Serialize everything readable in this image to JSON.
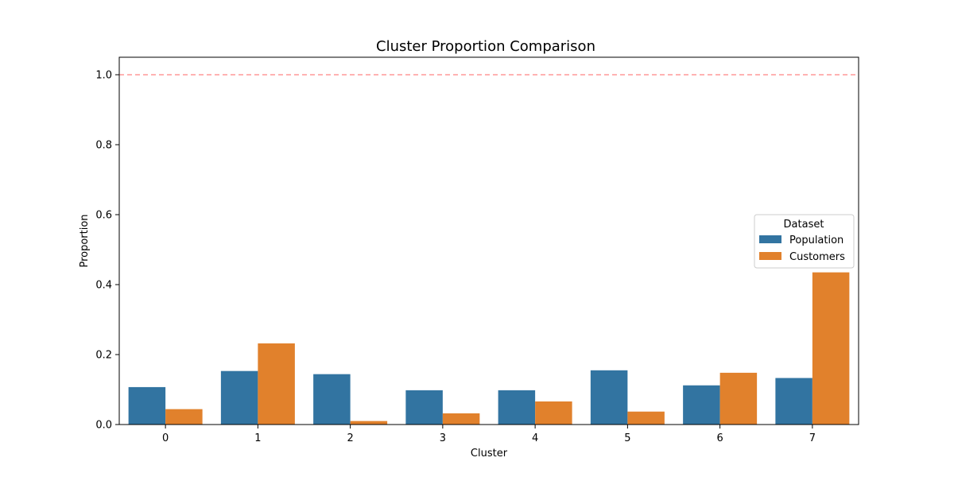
{
  "chart_data": {
    "type": "bar",
    "title": "Cluster Proportion Comparison",
    "xlabel": "Cluster",
    "ylabel": "Proportion",
    "categories": [
      "0",
      "1",
      "2",
      "3",
      "4",
      "5",
      "6",
      "7"
    ],
    "series": [
      {
        "name": "Population",
        "color": "#3274a1",
        "values": [
          0.107,
          0.153,
          0.144,
          0.098,
          0.098,
          0.155,
          0.112,
          0.133
        ]
      },
      {
        "name": "Customers",
        "color": "#e1812c",
        "values": [
          0.044,
          0.232,
          0.01,
          0.032,
          0.066,
          0.037,
          0.148,
          0.435
        ]
      }
    ],
    "ylim": [
      0,
      1.05
    ],
    "yticks": [
      "0.0",
      "0.2",
      "0.4",
      "0.6",
      "0.8",
      "1.0"
    ],
    "reference_line": {
      "y": 1.0,
      "color": "#ff9999",
      "style": "dashed"
    },
    "grid": false,
    "legend": {
      "title": "Dataset",
      "placement": "center-right"
    }
  }
}
